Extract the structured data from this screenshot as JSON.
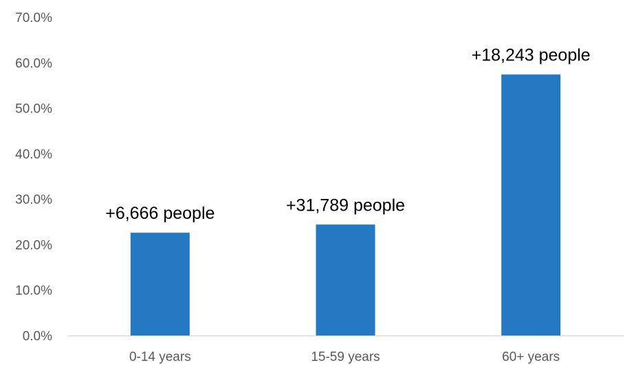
{
  "chart_data": {
    "type": "bar",
    "title": "",
    "xlabel": "",
    "ylabel": "",
    "categories": [
      "0-14 years",
      "15-59 years",
      "60+ years"
    ],
    "values": [
      22.6,
      24.4,
      57.4
    ],
    "data_labels": [
      "+6,666 people",
      "+31,789 people",
      "+18,243 people"
    ],
    "ylim": [
      0,
      70
    ],
    "yticks": [
      0,
      10,
      20,
      30,
      40,
      50,
      60,
      70
    ],
    "ytick_labels": [
      "0.0%",
      "10.0%",
      "20.0%",
      "30.0%",
      "40.0%",
      "50.0%",
      "60.0%",
      "70.0%"
    ],
    "grid": false,
    "legend": "none",
    "colors": {
      "bar": "#2479c2",
      "axis_line": "#d9d9d9",
      "tick_text": "#595959",
      "data_label_text": "#000000"
    }
  }
}
